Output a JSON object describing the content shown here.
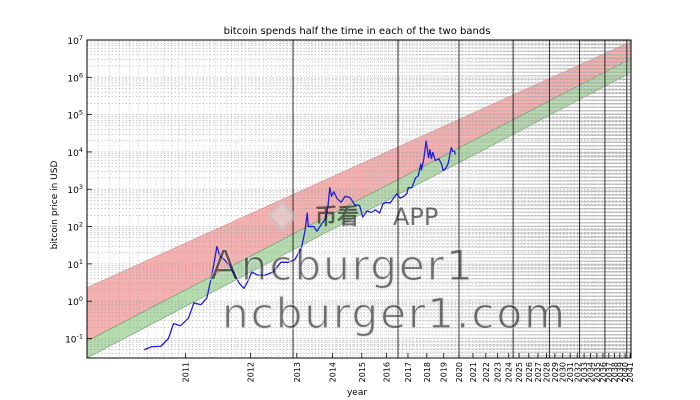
{
  "chart_data": {
    "type": "line",
    "title": "bitcoin spends half the time in each of the two bands",
    "xlabel": "year",
    "ylabel": "bitcoin price in USD",
    "y_scale": "log",
    "x_scale": "log (days since genesis block)",
    "ylim": [
      0.03,
      10000000
    ],
    "xlim": [
      "2010-02",
      "2041-03"
    ],
    "grid": true,
    "legend": "none",
    "y_ticks": [
      {
        "value": 0.1,
        "base": "10",
        "exp": "-1"
      },
      {
        "value": 1,
        "base": "10",
        "exp": "0"
      },
      {
        "value": 10,
        "base": "10",
        "exp": "1"
      },
      {
        "value": 100,
        "base": "10",
        "exp": "2"
      },
      {
        "value": 1000,
        "base": "10",
        "exp": "3"
      },
      {
        "value": 10000,
        "base": "10",
        "exp": "4"
      },
      {
        "value": 100000,
        "base": "10",
        "exp": "5"
      },
      {
        "value": 1000000,
        "base": "10",
        "exp": "6"
      },
      {
        "value": 10000000,
        "base": "10",
        "exp": "7"
      }
    ],
    "x_ticks": [
      "2011",
      "2012",
      "2013",
      "2014",
      "2015",
      "2016",
      "2017",
      "2018",
      "2019",
      "2020",
      "2021",
      "2022",
      "2023",
      "2024",
      "2025",
      "2026",
      "2027",
      "2028",
      "2029",
      "2030",
      "2031",
      "2032",
      "2033",
      "2034",
      "2035",
      "2036",
      "2037",
      "2038",
      "2039",
      "2040",
      "2041"
    ],
    "vertical_lines": [
      "2012-11-28",
      "2016-07-09",
      "2020-01",
      "2024-06",
      "2028-05",
      "2032-05",
      "2036-05",
      "2040-05"
    ],
    "bands": [
      {
        "name": "upper band",
        "color": "#f4a3a3",
        "edge_color": "#d98a8a",
        "lower": [
          {
            "x": "2010-02",
            "y": 0.085
          },
          {
            "x": "2041-03",
            "y": 3200000
          }
        ],
        "upper": [
          {
            "x": "2010-02",
            "y": 2.3
          },
          {
            "x": "2041-03",
            "y": 9000000
          }
        ]
      },
      {
        "name": "lower band",
        "color": "#a8d6a1",
        "edge_color": "#6aa565",
        "lower": [
          {
            "x": "2010-02",
            "y": 0.03
          },
          {
            "x": "2041-03",
            "y": 1350000
          }
        ],
        "upper": [
          {
            "x": "2010-02",
            "y": 0.085
          },
          {
            "x": "2041-03",
            "y": 3200000
          }
        ]
      }
    ],
    "series": [
      {
        "color": "#1f1fd6",
        "points": [
          {
            "x": "2010-07-20",
            "y": 0.05
          },
          {
            "x": "2010-08-15",
            "y": 0.06
          },
          {
            "x": "2010-09-20",
            "y": 0.062
          },
          {
            "x": "2010-10-20",
            "y": 0.1
          },
          {
            "x": "2010-11-10",
            "y": 0.25
          },
          {
            "x": "2010-12-10",
            "y": 0.22
          },
          {
            "x": "2011-01-15",
            "y": 0.35
          },
          {
            "x": "2011-02-10",
            "y": 0.9
          },
          {
            "x": "2011-03-15",
            "y": 0.8
          },
          {
            "x": "2011-04-15",
            "y": 1.2
          },
          {
            "x": "2011-05-15",
            "y": 6
          },
          {
            "x": "2011-06-08",
            "y": 29
          },
          {
            "x": "2011-06-25",
            "y": 16
          },
          {
            "x": "2011-07-20",
            "y": 13
          },
          {
            "x": "2011-08-20",
            "y": 9
          },
          {
            "x": "2011-09-20",
            "y": 5
          },
          {
            "x": "2011-10-20",
            "y": 3
          },
          {
            "x": "2011-11-18",
            "y": 2.2
          },
          {
            "x": "2011-12-15",
            "y": 3.5
          },
          {
            "x": "2012-01-10",
            "y": 6
          },
          {
            "x": "2012-02-20",
            "y": 5
          },
          {
            "x": "2012-04-15",
            "y": 5
          },
          {
            "x": "2012-06-15",
            "y": 6
          },
          {
            "x": "2012-08-15",
            "y": 11
          },
          {
            "x": "2012-10-15",
            "y": 11
          },
          {
            "x": "2012-12-15",
            "y": 13
          },
          {
            "x": "2013-02-15",
            "y": 28
          },
          {
            "x": "2013-03-20",
            "y": 80
          },
          {
            "x": "2013-04-09",
            "y": 230
          },
          {
            "x": "2013-04-20",
            "y": 100
          },
          {
            "x": "2013-06-15",
            "y": 100
          },
          {
            "x": "2013-07-15",
            "y": 75
          },
          {
            "x": "2013-09-15",
            "y": 130
          },
          {
            "x": "2013-10-15",
            "y": 160
          },
          {
            "x": "2013-11-10",
            "y": 340
          },
          {
            "x": "2013-12-01",
            "y": 1100
          },
          {
            "x": "2013-12-20",
            "y": 650
          },
          {
            "x": "2014-01-15",
            "y": 850
          },
          {
            "x": "2014-02-25",
            "y": 550
          },
          {
            "x": "2014-04-10",
            "y": 450
          },
          {
            "x": "2014-06-01",
            "y": 650
          },
          {
            "x": "2014-08-01",
            "y": 590
          },
          {
            "x": "2014-10-01",
            "y": 380
          },
          {
            "x": "2014-12-01",
            "y": 370
          },
          {
            "x": "2015-01-14",
            "y": 180
          },
          {
            "x": "2015-03-15",
            "y": 260
          },
          {
            "x": "2015-05-15",
            "y": 240
          },
          {
            "x": "2015-07-15",
            "y": 280
          },
          {
            "x": "2015-09-15",
            "y": 230
          },
          {
            "x": "2015-11-05",
            "y": 400
          },
          {
            "x": "2015-12-15",
            "y": 440
          },
          {
            "x": "2016-03-01",
            "y": 430
          },
          {
            "x": "2016-06-17",
            "y": 750
          },
          {
            "x": "2016-08-15",
            "y": 580
          },
          {
            "x": "2016-10-15",
            "y": 640
          },
          {
            "x": "2016-12-15",
            "y": 780
          },
          {
            "x": "2017-01-05",
            "y": 1100
          },
          {
            "x": "2017-03-15",
            "y": 1100
          },
          {
            "x": "2017-05-20",
            "y": 2000
          },
          {
            "x": "2017-07-15",
            "y": 2300
          },
          {
            "x": "2017-09-01",
            "y": 4700
          },
          {
            "x": "2017-09-15",
            "y": 3300
          },
          {
            "x": "2017-11-01",
            "y": 6500
          },
          {
            "x": "2017-12-17",
            "y": 19500
          },
          {
            "x": "2018-02-06",
            "y": 7000
          },
          {
            "x": "2018-03-05",
            "y": 11500
          },
          {
            "x": "2018-04-06",
            "y": 6700
          },
          {
            "x": "2018-05-05",
            "y": 9700
          },
          {
            "x": "2018-06-29",
            "y": 5900
          },
          {
            "x": "2018-09-15",
            "y": 6500
          },
          {
            "x": "2018-11-20",
            "y": 4500
          },
          {
            "x": "2018-12-15",
            "y": 3200
          },
          {
            "x": "2019-02-15",
            "y": 3600
          },
          {
            "x": "2019-04-15",
            "y": 5000
          },
          {
            "x": "2019-06-26",
            "y": 13000
          },
          {
            "x": "2019-08-01",
            "y": 10500
          },
          {
            "x": "2019-09-15",
            "y": 10200
          },
          {
            "x": "2019-10-01",
            "y": 8500
          }
        ]
      }
    ]
  },
  "watermark": {
    "brand_text": "APP",
    "brand_cn": "币看",
    "line1": "Ancburger1",
    "line2": "ncburger1.com"
  }
}
